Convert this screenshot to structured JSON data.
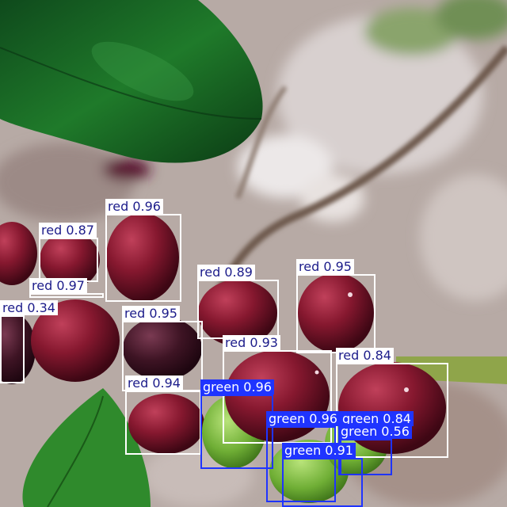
{
  "colors": {
    "red_box": "#ffffff",
    "red_label_text": "#1c1c8a",
    "green_box": "#1f34ff",
    "green_label_text": "#ffffff"
  },
  "detections": [
    {
      "cls": "red",
      "text": "red 0.96"
    },
    {
      "cls": "red",
      "text": "red 0.87"
    },
    {
      "cls": "red",
      "text": "red 0.97"
    },
    {
      "cls": "red",
      "text": "red 0.34"
    },
    {
      "cls": "red",
      "text": "red 0.89"
    },
    {
      "cls": "red",
      "text": "red 0.95"
    },
    {
      "cls": "red",
      "text": "red 0.95"
    },
    {
      "cls": "red",
      "text": "red 0.93"
    },
    {
      "cls": "red",
      "text": "red 0.84"
    },
    {
      "cls": "red",
      "text": "red 0.94"
    },
    {
      "cls": "green",
      "text": "green 0.96"
    },
    {
      "cls": "green",
      "text": "green 0.96"
    },
    {
      "cls": "green",
      "text": "green 0.84"
    },
    {
      "cls": "green",
      "text": "green 0.56"
    },
    {
      "cls": "green",
      "text": "green 0.91"
    }
  ]
}
